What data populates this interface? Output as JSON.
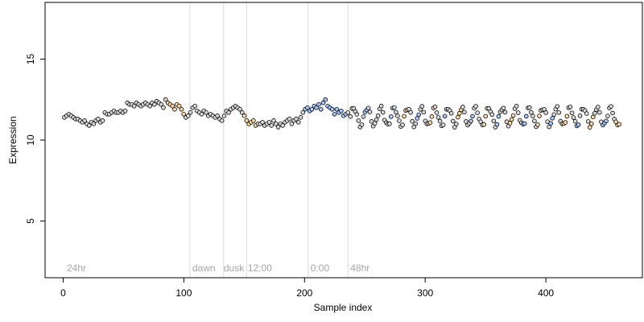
{
  "chart_data": {
    "type": "scatter",
    "xlabel": "Sample index",
    "ylabel": "Expression",
    "xlim": [
      -15,
      480
    ],
    "ylim": [
      1.5,
      18.5
    ],
    "xticks": [
      0,
      100,
      200,
      300,
      400
    ],
    "yticks": [
      5,
      10,
      15
    ],
    "grid": false,
    "region_lines": [
      105,
      133,
      152,
      203,
      236
    ],
    "region_labels": [
      {
        "x": 3,
        "text": "24hr"
      },
      {
        "x": 107,
        "text": "dawn"
      },
      {
        "x": 133,
        "text": "dusk"
      },
      {
        "x": 153,
        "text": "12:00"
      },
      {
        "x": 205,
        "text": "0:00"
      },
      {
        "x": 238,
        "text": "48hr"
      }
    ],
    "colors": {
      "default": "#d9d9d9",
      "light": "#ffd9a6",
      "dark": "#a6c8ff",
      "frame": "#000000"
    },
    "series": [
      {
        "values": [
          11.4,
          11.5,
          11.6,
          11.5,
          11.4,
          11.3,
          11.3,
          11.2,
          11.1,
          11.2,
          11.0,
          10.9,
          11.1,
          11.0,
          11.2,
          11.3,
          11.1,
          11.2,
          11.7,
          11.6,
          11.6,
          11.7,
          11.8,
          11.7,
          11.7,
          11.8,
          11.7,
          11.8,
          12.3,
          12.2,
          12.2,
          12.1,
          12.3,
          12.2,
          12.1,
          12.2,
          12.3,
          12.2,
          12.1,
          12.3,
          12.2,
          12.4,
          12.3,
          12.2,
          12.0,
          12.5,
          12.3,
          12.2,
          12.1,
          11.9,
          12.2,
          12.1,
          11.9,
          11.6,
          11.4,
          11.5,
          11.7,
          12.0,
          12.1,
          11.8,
          11.7,
          11.6,
          11.8,
          11.7,
          11.5,
          11.6,
          11.5,
          11.4,
          11.5,
          11.3,
          11.2,
          11.5,
          11.8,
          11.7,
          11.9,
          12.0,
          12.1,
          12.0,
          11.9,
          11.7,
          11.5,
          11.2,
          11.0,
          11.1,
          11.2,
          10.9,
          11.0,
          11.0,
          11.1,
          10.9,
          11.0,
          11.1,
          10.9,
          11.2,
          11.0,
          10.8,
          11.0,
          10.9,
          11.1,
          11.2,
          11.3,
          11.0,
          11.2,
          11.3,
          11.1,
          11.4,
          11.7,
          11.9,
          12.0,
          11.8,
          11.9,
          12.1,
          12.0,
          12.2,
          11.9,
          12.3,
          12.5,
          12.1,
          12.0,
          11.9,
          11.6,
          11.9,
          11.7,
          11.8,
          11.5,
          11.6,
          11.7
        ]
      }
    ]
  }
}
